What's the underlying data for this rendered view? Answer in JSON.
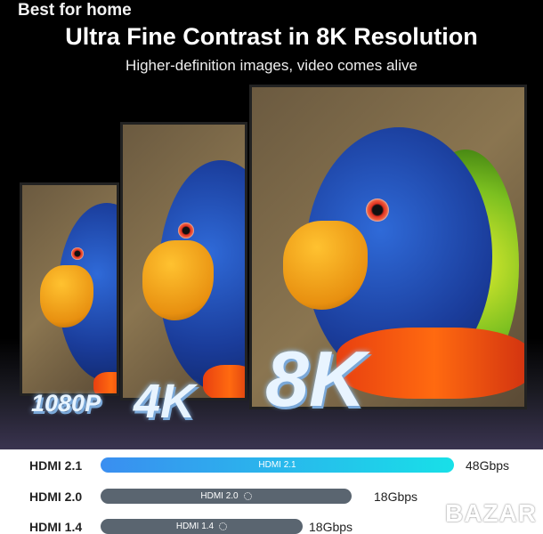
{
  "overlay_text": "Best for home",
  "title": "Ultra Fine Contrast in 8K Resolution",
  "subtitle": "Higher-definition images, video comes alive",
  "resolutions": [
    "1080P",
    "4K",
    "8K"
  ],
  "comparison": [
    {
      "label": "HDMI 2.1",
      "bar_text": "HDMI 2.1",
      "speed": "48Gbps",
      "color": "gradient #3a8ef0 → #18e0e8"
    },
    {
      "label": "HDMI 2.0",
      "bar_text": "HDMI 2.0",
      "speed": "18Gbps",
      "color": "#5a6570",
      "icon": "loading-spinner-icon"
    },
    {
      "label": "HDMI 1.4",
      "bar_text": "HDMI 1.4",
      "speed": "18Gbps",
      "color": "#5a6570",
      "icon": "loading-spinner-icon"
    }
  ],
  "watermark": "BAZAR"
}
